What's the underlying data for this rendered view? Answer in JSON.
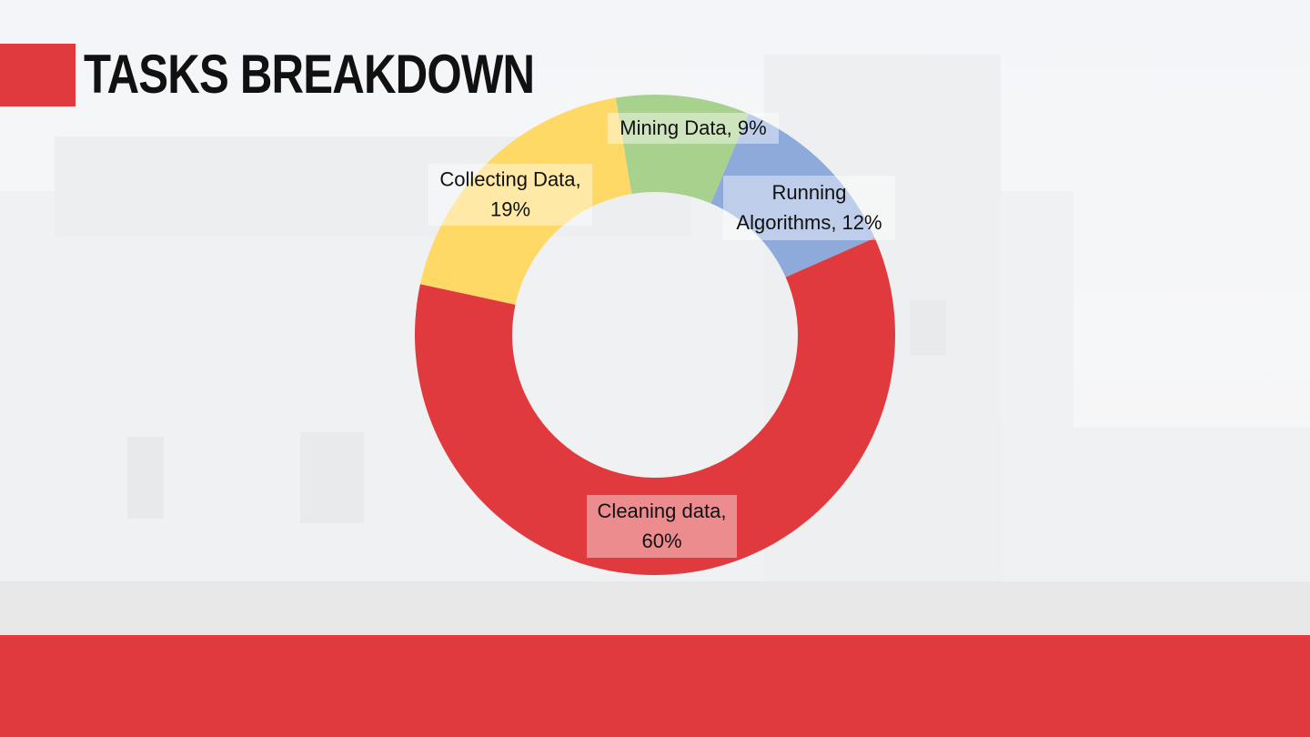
{
  "slide": {
    "title": "TASKS BREAKDOWN"
  },
  "colors": {
    "accent_red": "#e0393e",
    "footer_gray": "#e7e7e8"
  },
  "chart_data": {
    "type": "pie",
    "variant": "donut",
    "title": "",
    "series": [
      {
        "name": "",
        "slices": [
          {
            "category": "Running Algorithms",
            "value": 12,
            "label": "Running Algorithms, 12%",
            "label_lines": [
              "Running",
              "Algorithms, 12%"
            ],
            "color": "#8eaadb"
          },
          {
            "category": "Cleaning data",
            "value": 60,
            "label": "Cleaning data, 60%",
            "label_lines": [
              "Cleaning data,",
              "60%"
            ],
            "color": "#e0393e"
          },
          {
            "category": "Collecting Data",
            "value": 19,
            "label": "Collecting Data, 19%",
            "label_lines": [
              "Collecting Data,",
              "19%"
            ],
            "color": "#ffd966"
          },
          {
            "category": "Mining Data",
            "value": 9,
            "label": "Mining Data, 9%",
            "label_lines": [
              "Mining Data, 9%"
            ],
            "color": "#a9d18e"
          }
        ]
      }
    ],
    "legend": "none",
    "data_labels": true
  }
}
